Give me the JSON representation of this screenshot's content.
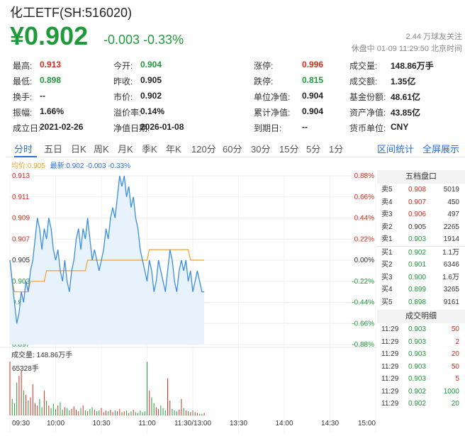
{
  "header": {
    "title": "化工ETF(SH:516020)",
    "price": "¥0.902",
    "change": "-0.003 -0.33%",
    "followers": "2.44 万球友关注",
    "status": "休盘中 01-09 11:29:50 北京时间"
  },
  "stats": [
    [
      {
        "label": "最高:",
        "value": "0.913",
        "color": "red"
      },
      {
        "label": "今开:",
        "value": "0.904",
        "color": "green"
      },
      {
        "label": "涨停:",
        "value": "0.996",
        "color": "red"
      },
      {
        "label": "成交量:",
        "value": "148.86万手"
      }
    ],
    [
      {
        "label": "最低:",
        "value": "0.898",
        "color": "green"
      },
      {
        "label": "昨收:",
        "value": "0.905"
      },
      {
        "label": "跌停:",
        "value": "0.815",
        "color": "green"
      },
      {
        "label": "成交额:",
        "value": "1.35亿"
      }
    ],
    [
      {
        "label": "换手:",
        "value": "--"
      },
      {
        "label": "市价:",
        "value": "0.902"
      },
      {
        "label": "单位净值:",
        "value": "0.904"
      },
      {
        "label": "基金份额:",
        "value": "48.61亿"
      }
    ],
    [
      {
        "label": "振幅:",
        "value": "1.66%"
      },
      {
        "label": "溢价率:",
        "value": "0.14%"
      },
      {
        "label": "累计净值:",
        "value": "0.904"
      },
      {
        "label": "资产净值:",
        "value": "43.85亿"
      }
    ],
    [
      {
        "label": "成立日:",
        "value": "2021-02-26"
      },
      {
        "label": "净值日期:",
        "value": "2026-01-08"
      },
      {
        "label": "到期日:",
        "value": "--"
      },
      {
        "label": "货币单位:",
        "value": "CNY"
      }
    ]
  ],
  "tabs": [
    "分时",
    "五日",
    "日K",
    "周K",
    "月K",
    "季K",
    "年K",
    "120分",
    "60分",
    "30分",
    "15分",
    "5分",
    "1分"
  ],
  "tab_links": [
    "区间统计",
    "全屏展示"
  ],
  "legend": {
    "avg_label": "均价:",
    "avg_value": "0.905",
    "latest_label": "最新:",
    "latest_value": "0.902 -0.003 -0.33%"
  },
  "volume": {
    "label": "成交量: 148.86万手",
    "max_label": "65328手"
  },
  "orderbook": {
    "title": "五档盘口",
    "asks": [
      {
        "label": "卖5",
        "price": "0.908",
        "vol": "5019",
        "color": "red"
      },
      {
        "label": "卖4",
        "price": "0.907",
        "vol": "450",
        "color": "red"
      },
      {
        "label": "卖3",
        "price": "0.906",
        "vol": "497",
        "color": "red"
      },
      {
        "label": "卖2",
        "price": "0.905",
        "vol": "2265",
        "color": ""
      },
      {
        "label": "卖1",
        "price": "0.903",
        "vol": "1914",
        "color": "green"
      }
    ],
    "bids": [
      {
        "label": "买1",
        "price": "0.902",
        "vol": "1.1万",
        "color": "green"
      },
      {
        "label": "买2",
        "price": "0.901",
        "vol": "6346",
        "color": "green"
      },
      {
        "label": "买3",
        "price": "0.900",
        "vol": "1.6万",
        "color": "green"
      },
      {
        "label": "买4",
        "price": "0.899",
        "vol": "3265",
        "color": "green"
      },
      {
        "label": "买5",
        "price": "0.898",
        "vol": "9161",
        "color": "green"
      }
    ],
    "trades_title": "成交明细",
    "trades": [
      {
        "time": "11:29",
        "price": "0.903",
        "vol": "50",
        "vcolor": "red"
      },
      {
        "time": "11:29",
        "price": "0.903",
        "vol": "2",
        "vcolor": "red"
      },
      {
        "time": "11:29",
        "price": "0.903",
        "vol": "20",
        "vcolor": "red"
      },
      {
        "time": "11:29",
        "price": "0.903",
        "vol": "50",
        "vcolor": "red"
      },
      {
        "time": "11:29",
        "price": "0.903",
        "vol": "5",
        "vcolor": "red"
      },
      {
        "time": "11:29",
        "price": "0.902",
        "vol": "1000",
        "vcolor": "green"
      },
      {
        "time": "11:29",
        "price": "0.902",
        "vol": "20",
        "vcolor": "green"
      }
    ]
  },
  "colors": {
    "up": "#d52b1e",
    "down": "#1f9a3a",
    "accent": "#2a6fd6",
    "price_line": "#3b8ede",
    "avg_line": "#f0a030"
  },
  "chart_data": {
    "type": "line",
    "prev_close": 0.905,
    "y_ticks_left": [
      "0.913",
      "0.911",
      "0.909",
      "0.907",
      "0.905",
      "0.903",
      "0.901",
      "0.899",
      "0.897"
    ],
    "y_ticks_right": [
      "0.88%",
      "0.66%",
      "0.44%",
      "0.22%",
      "0.00%",
      "-0.22%",
      "-0.44%",
      "-0.66%",
      "-0.88%"
    ],
    "x_ticks": [
      "09:30",
      "10:00",
      "10:30",
      "11:00",
      "11:30/13:00",
      "13:30",
      "14:00",
      "14:30",
      "15:00"
    ],
    "ylim": [
      0.897,
      0.913
    ],
    "series": [
      {
        "name": "最新",
        "values": [
          0.905,
          0.903,
          0.901,
          0.899,
          0.9,
          0.902,
          0.901,
          0.903,
          0.902,
          0.904,
          0.905,
          0.907,
          0.909,
          0.908,
          0.906,
          0.908,
          0.907,
          0.909,
          0.908,
          0.906,
          0.905,
          0.906,
          0.904,
          0.903,
          0.905,
          0.903,
          0.902,
          0.904,
          0.905,
          0.907,
          0.908,
          0.906,
          0.908,
          0.907,
          0.909,
          0.907,
          0.905,
          0.906,
          0.905,
          0.904,
          0.905,
          0.906,
          0.908,
          0.907,
          0.909,
          0.91,
          0.909,
          0.911,
          0.913,
          0.912,
          0.913,
          0.911,
          0.912,
          0.91,
          0.911,
          0.909,
          0.908,
          0.906,
          0.905,
          0.904,
          0.903,
          0.905,
          0.904,
          0.902,
          0.903,
          0.905,
          0.904,
          0.903,
          0.902,
          0.904,
          0.906,
          0.905,
          0.903,
          0.902,
          0.904,
          0.905,
          0.904,
          0.905,
          0.903,
          0.904,
          0.902,
          0.903,
          0.904,
          0.903,
          0.902,
          0.902
        ]
      },
      {
        "name": "均价",
        "values": [
          0.905,
          0.903,
          0.902,
          0.902,
          0.902,
          0.902,
          0.902,
          0.902,
          0.902,
          0.903,
          0.903,
          0.903,
          0.903,
          0.903,
          0.903,
          0.903,
          0.904,
          0.904,
          0.904,
          0.904,
          0.904,
          0.904,
          0.904,
          0.904,
          0.904,
          0.904,
          0.904,
          0.904,
          0.904,
          0.904,
          0.904,
          0.904,
          0.904,
          0.904,
          0.905,
          0.905,
          0.905,
          0.905,
          0.905,
          0.905,
          0.905,
          0.905,
          0.905,
          0.905,
          0.905,
          0.905,
          0.905,
          0.905,
          0.905,
          0.905,
          0.905,
          0.905,
          0.905,
          0.905,
          0.905,
          0.905,
          0.905,
          0.905,
          0.905,
          0.905,
          0.905,
          0.906,
          0.906,
          0.906,
          0.906,
          0.906,
          0.906,
          0.906,
          0.906,
          0.906,
          0.906,
          0.906,
          0.906,
          0.906,
          0.906,
          0.906,
          0.906,
          0.906,
          0.906,
          0.905,
          0.905,
          0.905,
          0.905,
          0.905,
          0.905,
          0.905
        ]
      }
    ],
    "volume_values": [
      65328,
      20000,
      15000,
      40000,
      48000,
      55000,
      30000,
      25000,
      18000,
      22000,
      38000,
      15000,
      12000,
      20000,
      10000,
      30000,
      18000,
      12000,
      9000,
      14000,
      8000,
      12000,
      16000,
      7000,
      10000,
      9000,
      6000,
      8000,
      11000,
      7000,
      5000,
      9000,
      12000,
      6000,
      5000,
      8000,
      10000,
      7000,
      5000,
      6000,
      9000,
      4000,
      6000,
      5000,
      7000,
      4000,
      6000,
      5000,
      8000,
      4000,
      5000,
      6000,
      3000,
      5000,
      7000,
      4000,
      3000,
      6000,
      4000,
      5000,
      65000,
      30000,
      22000,
      15000,
      10000,
      8000,
      12000,
      9000,
      6000,
      45000,
      18000,
      8000,
      6000,
      5000,
      7000,
      20000,
      9000,
      6000,
      5000,
      4000,
      6000,
      4000,
      3000,
      2000,
      2000,
      3000
    ]
  }
}
